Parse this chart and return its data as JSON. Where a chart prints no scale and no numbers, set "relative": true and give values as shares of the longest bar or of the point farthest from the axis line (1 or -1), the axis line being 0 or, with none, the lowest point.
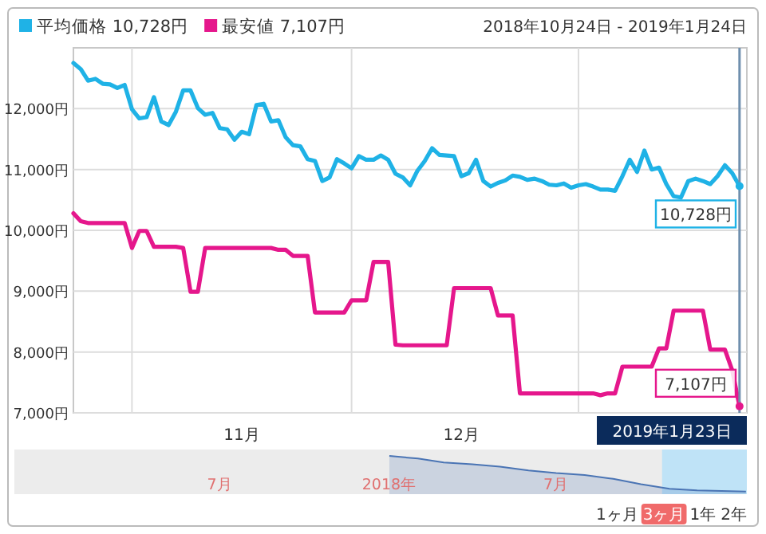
{
  "chart_data": [
    {
      "type": "line",
      "subtitle": "2018年10月24日 - 2019年1月24日",
      "legend": "top left",
      "grid": true,
      "x": [
        "2018-10-24",
        "2018-10-25",
        "2018-10-26",
        "2018-10-27",
        "2018-10-28",
        "2018-10-29",
        "2018-10-30",
        "2018-10-31",
        "2018-11-01",
        "2018-11-02",
        "2018-11-03",
        "2018-11-04",
        "2018-11-05",
        "2018-11-06",
        "2018-11-07",
        "2018-11-08",
        "2018-11-09",
        "2018-11-10",
        "2018-11-11",
        "2018-11-12",
        "2018-11-13",
        "2018-11-14",
        "2018-11-15",
        "2018-11-16",
        "2018-11-17",
        "2018-11-18",
        "2018-11-19",
        "2018-11-20",
        "2018-11-21",
        "2018-11-22",
        "2018-11-23",
        "2018-11-24",
        "2018-11-25",
        "2018-11-26",
        "2018-11-27",
        "2018-11-28",
        "2018-11-29",
        "2018-11-30",
        "2018-12-01",
        "2018-12-02",
        "2018-12-03",
        "2018-12-04",
        "2018-12-05",
        "2018-12-06",
        "2018-12-07",
        "2018-12-08",
        "2018-12-09",
        "2018-12-10",
        "2018-12-11",
        "2018-12-12",
        "2018-12-13",
        "2018-12-14",
        "2018-12-15",
        "2018-12-16",
        "2018-12-17",
        "2018-12-18",
        "2018-12-19",
        "2018-12-20",
        "2018-12-21",
        "2018-12-22",
        "2018-12-23",
        "2018-12-24",
        "2018-12-25",
        "2018-12-26",
        "2018-12-27",
        "2018-12-28",
        "2018-12-29",
        "2018-12-30",
        "2018-12-31",
        "2019-01-01",
        "2019-01-02",
        "2019-01-03",
        "2019-01-04",
        "2019-01-05",
        "2019-01-06",
        "2019-01-07",
        "2019-01-08",
        "2019-01-09",
        "2019-01-10",
        "2019-01-11",
        "2019-01-12",
        "2019-01-13",
        "2019-01-14",
        "2019-01-15",
        "2019-01-16",
        "2019-01-17",
        "2019-01-18",
        "2019-01-19",
        "2019-01-20",
        "2019-01-21",
        "2019-01-22",
        "2019-01-23"
      ],
      "series": [
        {
          "name": "平均価格 10,728円",
          "color": "#1fb2e6",
          "values": [
            12750,
            12650,
            12460,
            12490,
            12410,
            12400,
            12340,
            12390,
            11990,
            11840,
            11860,
            12190,
            11790,
            11730,
            11950,
            12300,
            12300,
            12010,
            11900,
            11930,
            11680,
            11660,
            11490,
            11620,
            11580,
            12060,
            12080,
            11790,
            11810,
            11530,
            11400,
            11380,
            11170,
            11140,
            10810,
            10870,
            11170,
            11100,
            11020,
            11220,
            11160,
            11160,
            11230,
            11160,
            10930,
            10870,
            10740,
            10980,
            11140,
            11350,
            11240,
            11230,
            11220,
            10890,
            10940,
            11160,
            10810,
            10720,
            10780,
            10820,
            10900,
            10880,
            10830,
            10850,
            10810,
            10750,
            10740,
            10770,
            10700,
            10740,
            10760,
            10720,
            10670,
            10670,
            10650,
            10890,
            11160,
            10960,
            11310,
            11000,
            11030,
            10760,
            10560,
            10540,
            10810,
            10850,
            10810,
            10760,
            10890,
            11070,
            10940,
            10728
          ]
        },
        {
          "name": "最安値 7,107円",
          "color": "#e5178c",
          "values": [
            10280,
            10150,
            10120,
            10120,
            10120,
            10120,
            10120,
            10120,
            9710,
            9990,
            9990,
            9730,
            9730,
            9730,
            9730,
            9710,
            8990,
            8990,
            9710,
            9710,
            9710,
            9710,
            9710,
            9710,
            9710,
            9710,
            9710,
            9710,
            9680,
            9680,
            9580,
            9580,
            9580,
            8650,
            8650,
            8650,
            8650,
            8650,
            8850,
            8850,
            8850,
            9480,
            9480,
            9480,
            8120,
            8110,
            8110,
            8110,
            8110,
            8110,
            8110,
            8110,
            9050,
            9050,
            9050,
            9050,
            9050,
            9050,
            8600,
            8600,
            8600,
            7320,
            7320,
            7320,
            7320,
            7320,
            7320,
            7320,
            7320,
            7320,
            7320,
            7320,
            7290,
            7320,
            7320,
            7760,
            7760,
            7760,
            7760,
            7760,
            8060,
            8060,
            8680,
            8680,
            8680,
            8680,
            8680,
            8040,
            8040,
            8040,
            7700,
            7107
          ]
        }
      ],
      "xlim": [
        "2018-10-24",
        "2019-01-24"
      ],
      "xticks": [
        {
          "value": "2018-11-01",
          "label": null
        },
        {
          "value": "2018-11-16",
          "label": "11月"
        },
        {
          "value": "2018-12-01",
          "label": null
        },
        {
          "value": "2018-12-16",
          "label": "12月"
        },
        {
          "value": "2019-01-01",
          "label": null
        }
      ],
      "ylim": [
        7000,
        13000
      ],
      "yticks": [
        {
          "value": 7000,
          "label": "7,000円"
        },
        {
          "value": 8000,
          "label": "8,000円"
        },
        {
          "value": 9000,
          "label": "9,000円"
        },
        {
          "value": 10000,
          "label": "10,000円"
        },
        {
          "value": 11000,
          "label": "11,000円"
        },
        {
          "value": 12000,
          "label": "12,000円"
        }
      ],
      "ref_lines": [
        {
          "axis": "x",
          "value": "2019-01-23",
          "label": "2019年1月23日",
          "color": "#6f8fae"
        }
      ],
      "annotations": [
        {
          "text": "10,728円",
          "x": "2019-01-23",
          "y": 10728
        },
        {
          "text": "7,107円",
          "x": "2019-01-23",
          "y": 7107
        }
      ]
    },
    {
      "type": "area",
      "relative": true,
      "color": "#4a74b4",
      "x": [
        "2018-01-01",
        "2018-02-01",
        "2018-03-01",
        "2018-04-01",
        "2018-05-01",
        "2018-06-01",
        "2018-07-01",
        "2018-08-01",
        "2018-09-01",
        "2018-10-01",
        "2018-11-01",
        "2018-12-01",
        "2019-01-23"
      ],
      "values": [
        1.0,
        0.93,
        0.83,
        0.78,
        0.72,
        0.62,
        0.55,
        0.5,
        0.4,
        0.26,
        0.14,
        0.1,
        0.07
      ],
      "xlim": [
        "2016-11-20",
        "2019-01-24"
      ],
      "xticks": [
        {
          "value": "2017-07-01",
          "label": "7月"
        },
        {
          "value": "2018-01-01",
          "label": "2018年"
        },
        {
          "value": "2018-07-01",
          "label": "7月"
        }
      ],
      "bands": [
        {
          "axis": "x",
          "from": "2018-10-24",
          "to": "2019-01-24",
          "color": "#bfe3f7"
        }
      ],
      "annotations": [
        "1ヶ月",
        "3ヶ月",
        "1年",
        "2年"
      ]
    }
  ]
}
